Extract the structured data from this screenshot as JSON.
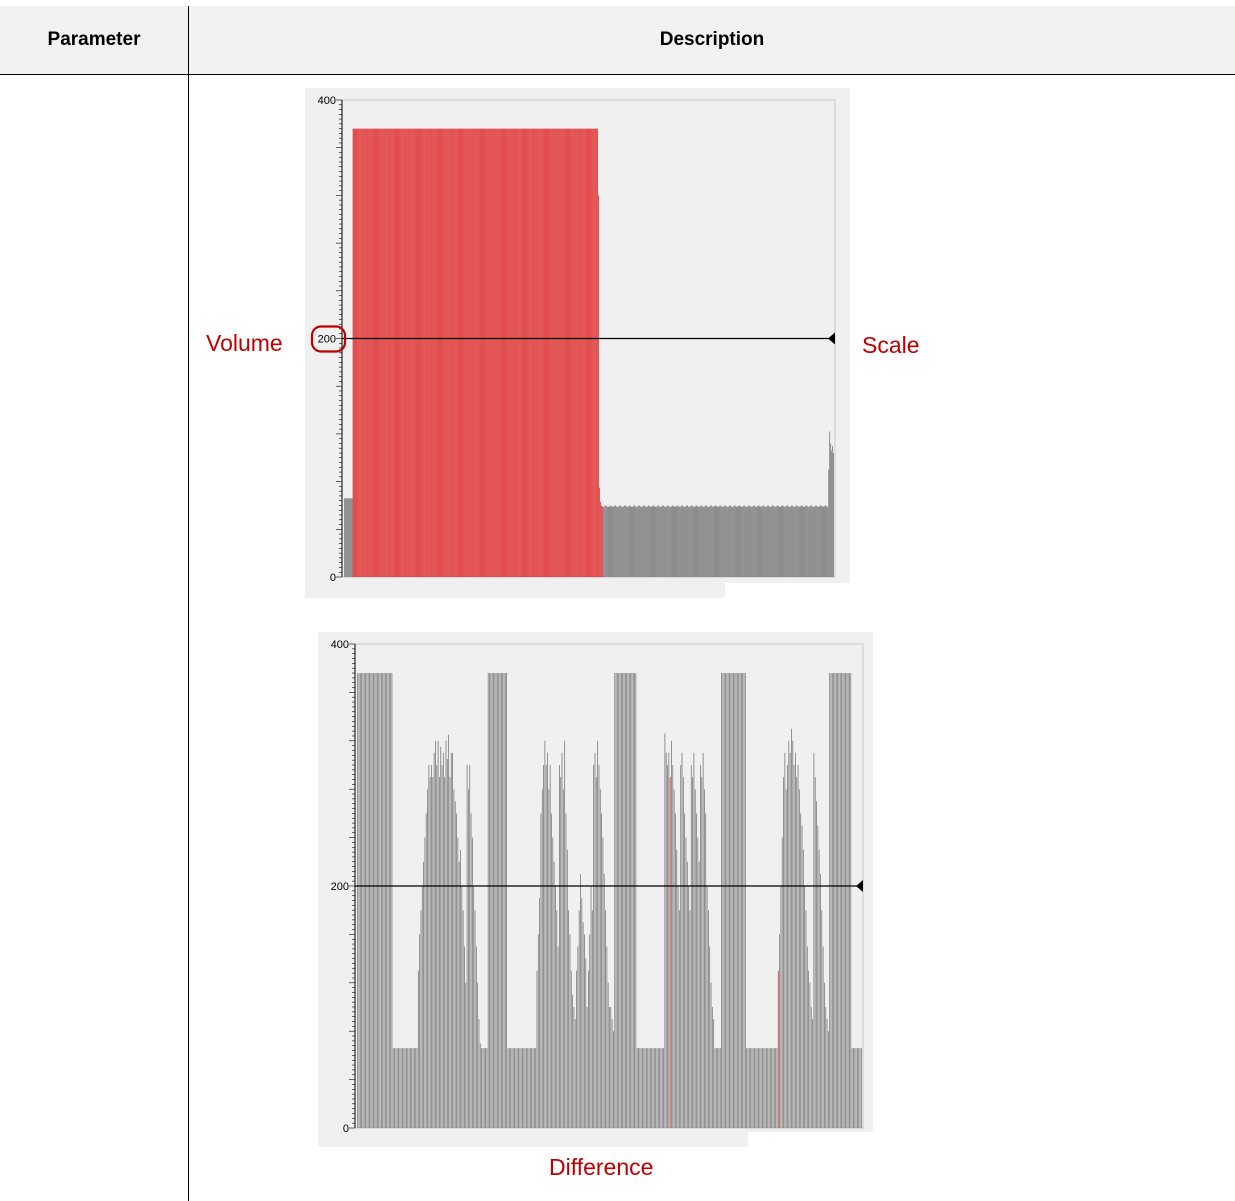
{
  "table": {
    "headers": [
      "Parameter",
      "Description"
    ]
  },
  "annotations": {
    "volume": "Volume",
    "scale": "Scale",
    "difference": "Difference"
  },
  "colors": {
    "highlight_bar": "#e03030",
    "normal_bar": "#7a7a7a",
    "annotation_text": "#c00000",
    "chart_bg": "#f0f0f0"
  },
  "chart_data": [
    {
      "type": "bar",
      "title": "",
      "ylim": [
        0,
        400
      ],
      "yticks": [
        "400",
        "200",
        "0"
      ],
      "scale_line": 200,
      "values": [
        66,
        66,
        66,
        66,
        66,
        66,
        66,
        66,
        66,
        376,
        376,
        376,
        376,
        376,
        376,
        376,
        376,
        376,
        376,
        376,
        376,
        376,
        376,
        376,
        376,
        376,
        376,
        376,
        376,
        376,
        376,
        376,
        376,
        376,
        376,
        376,
        376,
        376,
        376,
        376,
        376,
        376,
        376,
        376,
        376,
        376,
        376,
        376,
        376,
        376,
        376,
        376,
        376,
        376,
        376,
        376,
        376,
        376,
        376,
        376,
        376,
        376,
        376,
        376,
        376,
        376,
        376,
        376,
        376,
        376,
        376,
        376,
        376,
        376,
        376,
        376,
        376,
        376,
        376,
        376,
        376,
        376,
        376,
        376,
        376,
        376,
        376,
        376,
        376,
        376,
        376,
        376,
        376,
        376,
        376,
        376,
        376,
        376,
        376,
        376,
        376,
        376,
        376,
        376,
        376,
        376,
        376,
        376,
        376,
        376,
        376,
        376,
        376,
        376,
        376,
        376,
        376,
        376,
        376,
        376,
        376,
        376,
        376,
        376,
        376,
        376,
        376,
        376,
        376,
        376,
        376,
        376,
        376,
        376,
        376,
        376,
        376,
        376,
        376,
        376,
        376,
        376,
        376,
        376,
        376,
        376,
        376,
        376,
        376,
        376,
        376,
        376,
        376,
        376,
        376,
        376,
        376,
        376,
        376,
        376,
        376,
        376,
        376,
        376,
        376,
        376,
        376,
        376,
        376,
        376,
        376,
        376,
        376,
        376,
        376,
        376,
        376,
        376,
        376,
        376,
        376,
        376,
        376,
        376,
        376,
        376,
        376,
        376,
        376,
        376,
        376,
        376,
        376,
        376,
        376,
        376,
        376,
        376,
        376,
        376,
        376,
        376,
        376,
        376,
        376,
        376,
        376,
        376,
        376,
        376,
        376,
        376,
        376,
        376,
        376,
        376,
        376,
        376,
        376,
        376,
        376,
        376,
        376,
        376,
        376,
        376,
        376,
        376,
        376,
        376,
        376,
        376,
        376,
        376,
        376,
        376,
        376,
        376,
        376,
        376,
        376,
        376,
        376,
        376,
        376,
        376,
        376,
        376,
        376,
        376,
        376,
        376,
        376,
        376,
        376,
        376,
        376,
        376,
        376,
        376,
        376,
        376,
        376,
        376,
        376,
        376,
        320,
        75,
        63,
        60,
        59,
        59,
        59,
        60,
        60,
        59,
        59,
        59,
        60,
        60,
        59,
        59,
        59,
        60,
        60,
        59,
        59,
        59,
        60,
        60,
        59,
        59,
        59,
        60,
        60,
        59,
        59,
        59,
        60,
        60,
        59,
        59,
        59,
        60,
        60,
        59,
        59,
        59,
        60,
        60,
        59,
        59,
        59,
        60,
        60,
        59,
        59,
        59,
        60,
        60,
        59,
        59,
        59,
        60,
        60,
        59,
        59,
        59,
        60,
        60,
        59,
        59,
        59,
        60,
        60,
        59,
        59,
        59,
        60,
        60,
        59,
        59,
        59,
        60,
        60,
        59,
        59,
        59,
        60,
        60,
        59,
        59,
        59,
        60,
        60,
        59,
        59,
        59,
        60,
        60,
        59,
        59,
        59,
        60,
        60,
        59,
        59,
        59,
        60,
        60,
        59,
        59,
        59,
        60,
        60,
        59,
        59,
        59,
        60,
        60,
        59,
        59,
        59,
        60,
        60,
        59,
        59,
        59,
        60,
        60,
        59,
        59,
        59,
        60,
        60,
        59,
        59,
        59,
        60,
        60,
        59,
        59,
        59,
        60,
        60,
        59,
        59,
        59,
        60,
        60,
        59,
        59,
        59,
        60,
        60,
        59,
        59,
        59,
        60,
        60,
        59,
        59,
        59,
        60,
        60,
        59,
        59,
        59,
        60,
        60,
        59,
        59,
        59,
        60,
        60,
        59,
        59,
        59,
        60,
        60,
        59,
        59,
        59,
        60,
        60,
        59,
        59,
        59,
        60,
        60,
        59,
        59,
        59,
        60,
        60,
        59,
        59,
        59,
        60,
        60,
        59,
        59,
        59,
        60,
        60,
        59,
        59,
        59,
        60,
        60,
        59,
        59,
        59,
        60,
        60,
        59,
        59,
        59,
        60,
        60,
        59,
        59,
        59,
        60,
        60,
        59,
        59,
        59,
        60,
        60,
        59,
        59,
        59,
        60,
        60,
        59,
        59,
        59,
        60,
        60,
        59,
        59,
        59,
        60,
        60,
        59,
        59,
        90,
        122,
        112,
        106,
        110,
        104
      ]
    },
    {
      "type": "bar",
      "title": "",
      "ylim": [
        0,
        400
      ],
      "yticks": [
        "400",
        "200",
        "0"
      ],
      "scale_line": 200,
      "values": [
        376,
        376,
        376,
        376,
        376,
        376,
        376,
        376,
        376,
        376,
        376,
        376,
        376,
        376,
        376,
        376,
        376,
        376,
        376,
        376,
        376,
        376,
        376,
        376,
        376,
        376,
        376,
        66,
        66,
        66,
        66,
        66,
        66,
        66,
        66,
        66,
        66,
        66,
        66,
        66,
        66,
        66,
        66,
        66,
        66,
        66,
        130,
        160,
        180,
        200,
        220,
        240,
        260,
        280,
        300,
        290,
        300,
        290,
        310,
        320,
        300,
        320,
        290,
        315,
        300,
        310,
        290,
        320,
        305,
        325,
        290,
        310,
        310,
        280,
        270,
        260,
        240,
        220,
        230,
        200,
        180,
        150,
        120,
        300,
        280,
        300,
        260,
        240,
        200,
        180,
        150,
        120,
        90,
        70,
        66,
        66,
        66,
        66,
        66,
        376,
        376,
        376,
        376,
        376,
        376,
        376,
        376,
        376,
        376,
        376,
        376,
        376,
        376,
        376,
        66,
        66,
        66,
        66,
        66,
        66,
        66,
        66,
        66,
        66,
        66,
        66,
        66,
        66,
        66,
        66,
        66,
        66,
        66,
        66,
        66,
        66,
        130,
        160,
        190,
        260,
        280,
        300,
        320,
        300,
        310,
        280,
        300,
        260,
        240,
        220,
        200,
        180,
        150,
        300,
        290,
        310,
        280,
        320,
        260,
        230,
        180,
        160,
        130,
        110,
        100,
        90,
        130,
        150,
        180,
        210,
        190,
        170,
        160,
        140,
        100,
        130,
        160,
        200,
        180,
        300,
        310,
        290,
        320,
        300,
        280,
        260,
        240,
        210,
        180,
        150,
        120,
        100,
        100,
        90,
        80,
        376,
        376,
        376,
        376,
        376,
        376,
        376,
        376,
        376,
        376,
        376,
        376,
        376,
        376,
        376,
        376,
        376,
        66,
        66,
        66,
        66,
        66,
        66,
        66,
        66,
        66,
        66,
        66,
        66,
        66,
        66,
        66,
        66,
        66,
        66,
        66,
        66,
        66,
        326,
        310,
        300,
        310,
        290,
        320,
        300,
        280,
        260,
        230,
        200,
        180,
        300,
        310,
        290,
        260,
        240,
        220,
        200,
        180,
        300,
        290,
        310,
        280,
        260,
        240,
        220,
        300,
        290,
        310,
        280,
        260,
        200,
        180,
        150,
        120,
        100,
        90,
        66,
        66,
        66,
        66,
        66,
        376,
        376,
        376,
        376,
        376,
        376,
        376,
        376,
        376,
        376,
        376,
        376,
        376,
        376,
        376,
        376,
        376,
        376,
        376,
        66,
        66,
        66,
        66,
        66,
        66,
        66,
        66,
        66,
        66,
        66,
        66,
        66,
        66,
        66,
        66,
        66,
        66,
        66,
        66,
        66,
        66,
        66,
        66,
        130,
        160,
        200,
        240,
        290,
        310,
        280,
        300,
        320,
        310,
        330,
        320,
        300,
        310,
        290,
        300,
        280,
        260,
        250,
        230,
        200,
        180,
        150,
        130,
        120,
        100,
        90,
        310,
        290,
        270,
        250,
        230,
        210,
        180,
        150,
        120,
        100,
        90,
        80,
        376,
        376,
        376,
        376,
        376,
        376,
        376,
        376,
        376,
        376,
        376,
        376,
        376,
        376,
        376,
        376,
        376,
        66,
        66,
        66,
        66,
        66,
        66,
        66,
        66
      ]
    }
  ]
}
